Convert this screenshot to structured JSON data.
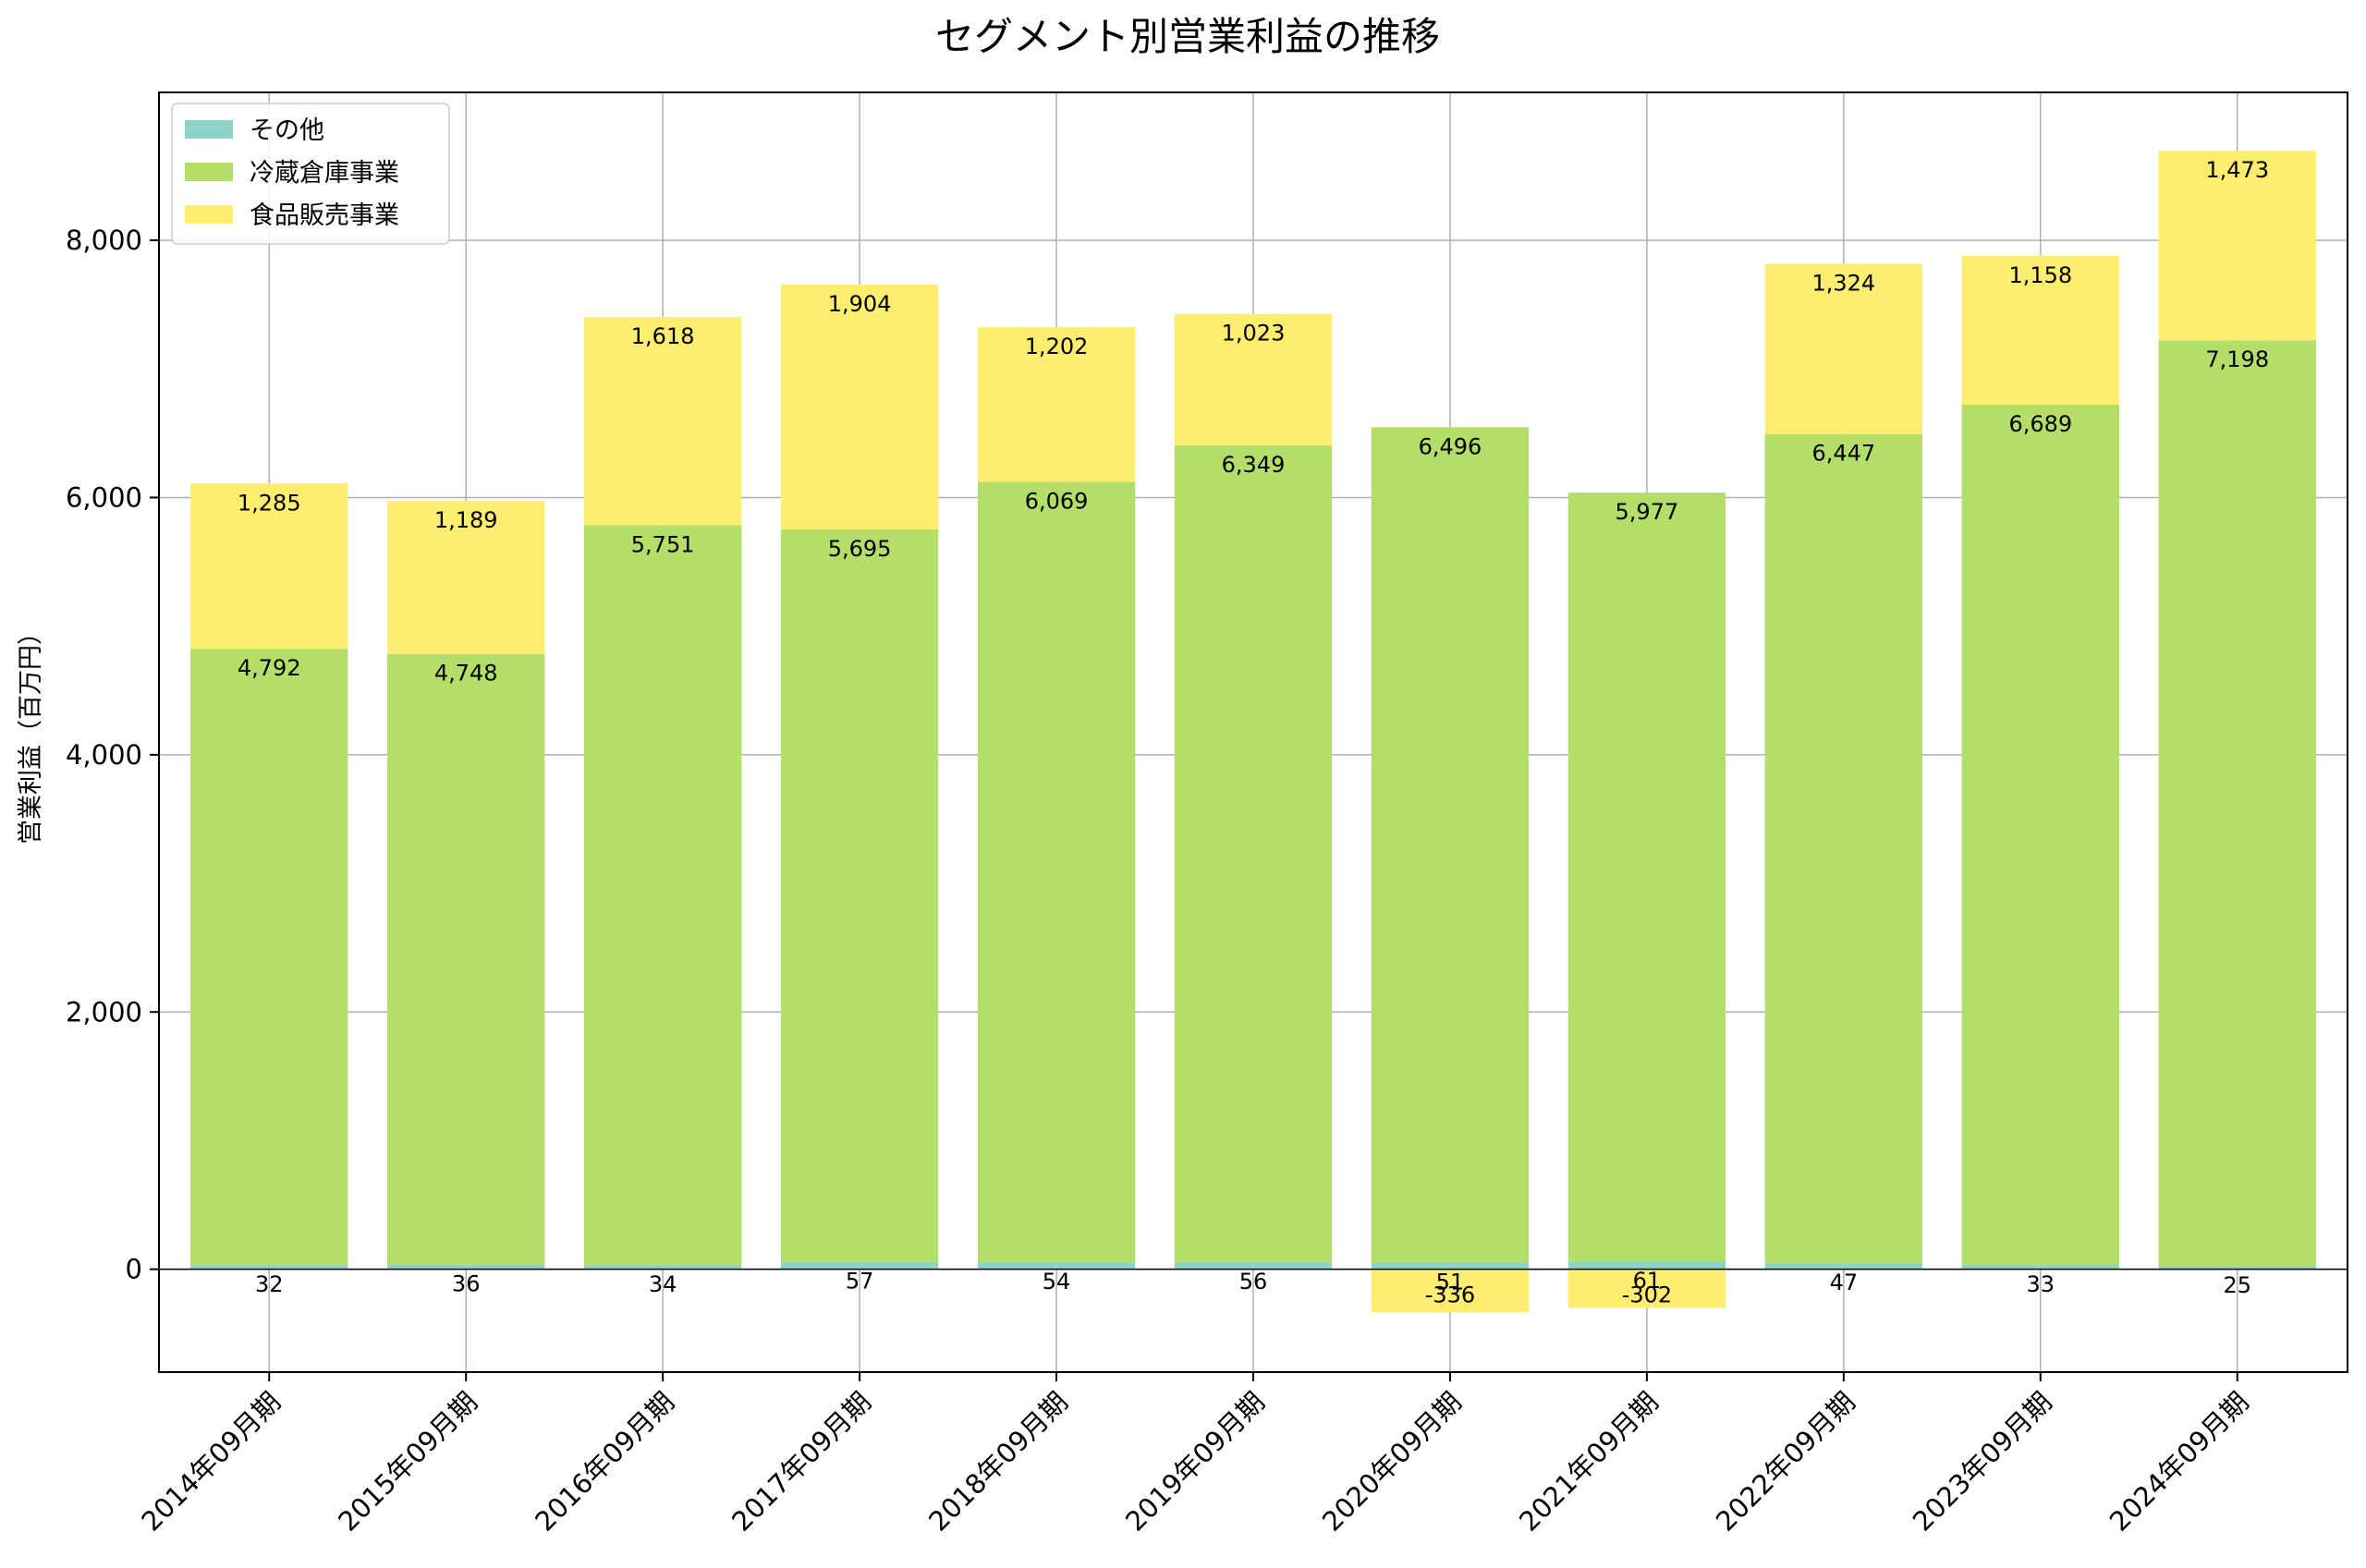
{
  "chart_data": {
    "type": "bar",
    "stacked": true,
    "title": "セグメント別営業利益の推移",
    "xlabel": "",
    "ylabel": "営業利益（百万円）",
    "ylim": [
      -800,
      9150
    ],
    "yticks": [
      0,
      2000,
      4000,
      6000,
      8000
    ],
    "ytick_labels": [
      "0",
      "2,000",
      "4,000",
      "6,000",
      "8,000"
    ],
    "grid": true,
    "legend_position": "top-left",
    "categories": [
      "2014年09月期",
      "2015年09月期",
      "2016年09月期",
      "2017年09月期",
      "2018年09月期",
      "2019年09月期",
      "2020年09月期",
      "2021年09月期",
      "2022年09月期",
      "2023年09月期",
      "2024年09月期"
    ],
    "series": [
      {
        "name": "その他",
        "color": "#8dd3c7",
        "values": [
          32,
          36,
          34,
          57,
          54,
          56,
          51,
          61,
          47,
          33,
          25
        ],
        "labels": [
          "32",
          "36",
          "34",
          "57",
          "54",
          "56",
          "51",
          "61",
          "47",
          "33",
          "25"
        ]
      },
      {
        "name": "冷蔵倉庫事業",
        "color": "#b3de69",
        "values": [
          4792,
          4748,
          5751,
          5695,
          6069,
          6349,
          6496,
          5977,
          6447,
          6689,
          7198
        ],
        "labels": [
          "4,792",
          "4,748",
          "5,751",
          "5,695",
          "6,069",
          "6,349",
          "6,496",
          "5,977",
          "6,447",
          "6,689",
          "7,198"
        ]
      },
      {
        "name": "食品販売事業",
        "color": "#ffed6f",
        "values": [
          1285,
          1189,
          1618,
          1904,
          1202,
          1023,
          -336,
          -302,
          1324,
          1158,
          1473
        ],
        "labels": [
          "1,285",
          "1,189",
          "1,618",
          "1,904",
          "1,202",
          "1,023",
          "-336",
          "-302",
          "1,324",
          "1,158",
          "1,473"
        ]
      }
    ]
  }
}
